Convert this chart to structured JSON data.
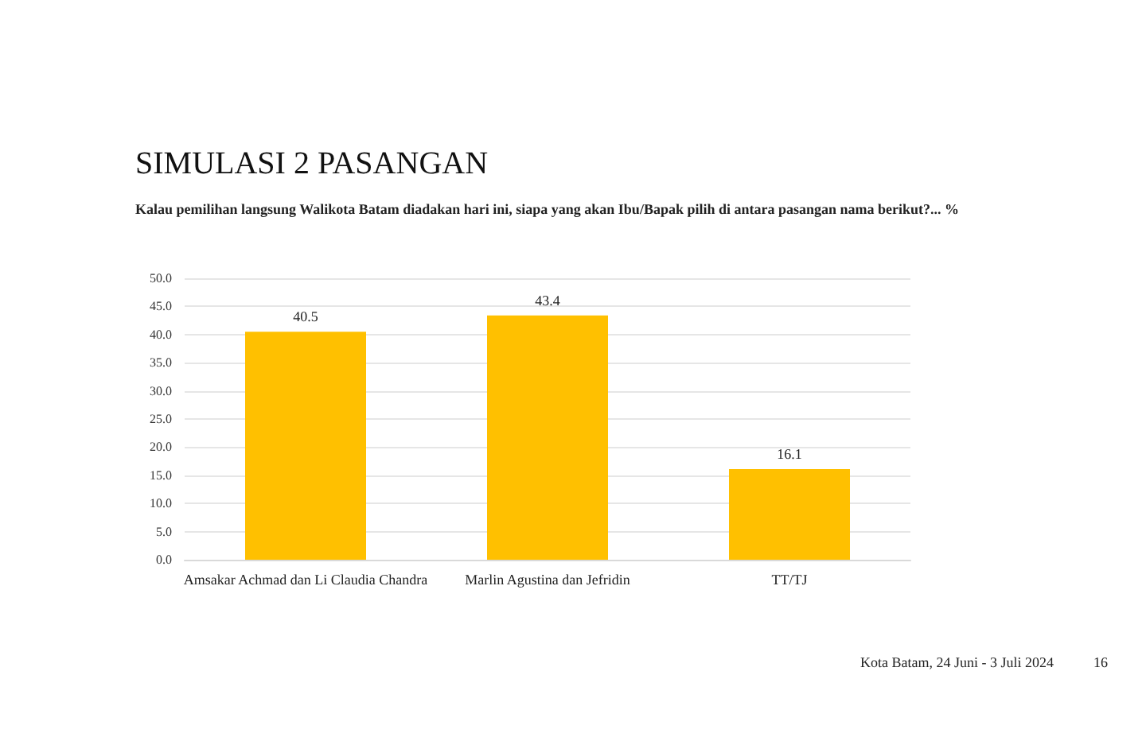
{
  "chart_data": {
    "type": "bar",
    "title": "SIMULASI 2 PASANGAN",
    "subtitle": "Kalau pemilihan langsung Walikota Batam diadakan hari ini, siapa yang akan Ibu/Bapak pilih di antara pasangan nama berikut?... %",
    "categories": [
      "Amsakar Achmad dan Li Claudia Chandra",
      "Marlin Agustina dan Jefridin",
      "TT/TJ"
    ],
    "values": [
      40.5,
      43.4,
      16.1
    ],
    "color": "#ffc000",
    "ylim": [
      0,
      50
    ],
    "yticks": [
      {
        "value": 0,
        "label": "0.0"
      },
      {
        "value": 5,
        "label": "5.0"
      },
      {
        "value": 10,
        "label": "10.0"
      },
      {
        "value": 15,
        "label": "15.0"
      },
      {
        "value": 20,
        "label": "20.0"
      },
      {
        "value": 25,
        "label": "25.0"
      },
      {
        "value": 30,
        "label": "30.0"
      },
      {
        "value": 35,
        "label": "35.0"
      },
      {
        "value": 40,
        "label": "40.0"
      },
      {
        "value": 45,
        "label": "45.0"
      },
      {
        "value": 50,
        "label": "50.0"
      }
    ],
    "grid": true,
    "data_labels": true,
    "annotations": [
      "Kota Batam, 24 Juni - 3 Juli 2024",
      "16"
    ]
  }
}
